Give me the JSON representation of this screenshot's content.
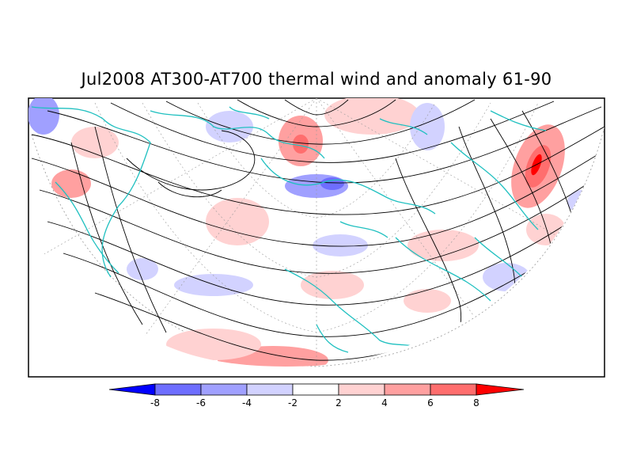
{
  "title": "Jul2008 AT300-AT700 thermal wind and anomaly 61-90",
  "colorbar": {
    "labels": [
      "-8",
      "-6",
      "-4",
      "-2",
      "2",
      "4",
      "6",
      "8"
    ],
    "colors": [
      "#0000ff",
      "#6e6eff",
      "#a0a0ff",
      "#d2d2ff",
      "#ffffff",
      "#ffd2d2",
      "#ffa0a0",
      "#ff6e6e",
      "#ff0000"
    ]
  },
  "colors": {
    "coastline": "#20c0c0",
    "streamline": "#000000",
    "graticule": "#999999",
    "frame": "#000000"
  }
}
